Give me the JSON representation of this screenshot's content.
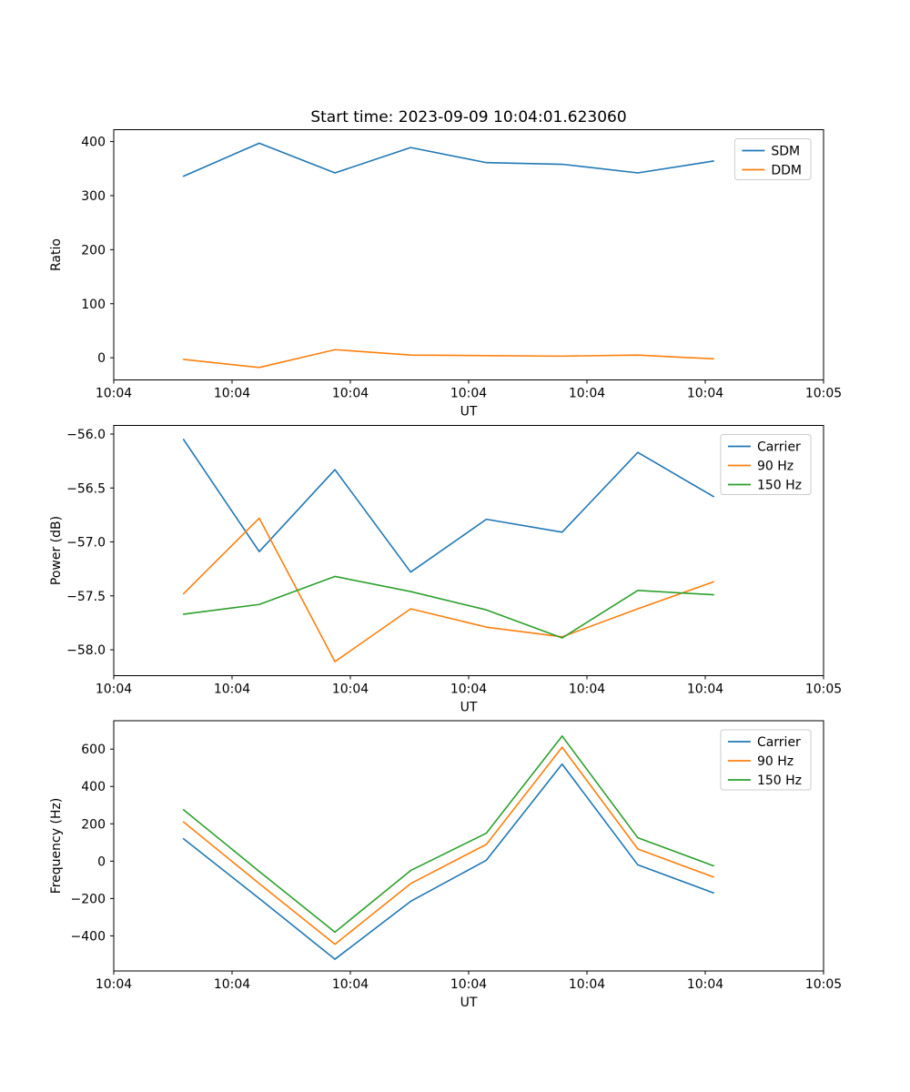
{
  "figure": {
    "title": "Start time: 2023-09-09 10:04:01.623060",
    "background": "#ffffff"
  },
  "colors": {
    "blue": "#1f77b4",
    "orange": "#ff7f0e",
    "green": "#2ca02c",
    "spine": "#000000",
    "legend_edge": "#cccccc"
  },
  "x_axis": {
    "label": "UT",
    "range": [
      0,
      60
    ],
    "tick_values": [
      0,
      10,
      20,
      30,
      40,
      50,
      60
    ],
    "tick_labels": [
      "10:04",
      "10:04",
      "10:04",
      "10:04",
      "10:04",
      "10:04",
      "10:05"
    ]
  },
  "sample_times_seconds": [
    5.9,
    12.3,
    18.7,
    25.1,
    31.5,
    37.9,
    44.3,
    50.7
  ],
  "chart_data": [
    {
      "id": "ratio",
      "type": "line",
      "title": "Start time: 2023-09-09 10:04:01.623060",
      "xlabel": "UT",
      "ylabel": "Ratio",
      "ylim": [
        -41,
        422
      ],
      "yticks": [
        0,
        100,
        200,
        300,
        400
      ],
      "ytick_labels": [
        "0",
        "100",
        "200",
        "300",
        "400"
      ],
      "x": [
        5.9,
        12.3,
        18.7,
        25.1,
        31.5,
        37.9,
        44.3,
        50.7
      ],
      "grid": false,
      "legend_position": "upper right",
      "series": [
        {
          "name": "SDM",
          "color": "#1f77b4",
          "values": [
            336,
            397,
            342,
            389,
            361,
            358,
            342,
            364
          ]
        },
        {
          "name": "DDM",
          "color": "#ff7f0e",
          "values": [
            -3,
            -18,
            15,
            5,
            4,
            3,
            5,
            -2
          ]
        }
      ]
    },
    {
      "id": "power",
      "type": "line",
      "xlabel": "UT",
      "ylabel": "Power (dB)",
      "ylim": [
        -58.24,
        -55.92
      ],
      "yticks": [
        -58.0,
        -57.5,
        -57.0,
        -56.5,
        -56.0
      ],
      "ytick_labels": [
        "−58.0",
        "−57.5",
        "−57.0",
        "−56.5",
        "−56.0"
      ],
      "x": [
        5.9,
        12.3,
        18.7,
        25.1,
        31.5,
        37.9,
        44.3,
        50.7
      ],
      "grid": false,
      "legend_position": "upper right",
      "series": [
        {
          "name": "Carrier",
          "color": "#1f77b4",
          "values": [
            -56.05,
            -57.09,
            -56.33,
            -57.28,
            -56.79,
            -56.91,
            -56.17,
            -56.58
          ]
        },
        {
          "name": "90 Hz",
          "color": "#ff7f0e",
          "values": [
            -57.48,
            -56.78,
            -58.11,
            -57.62,
            -57.79,
            -57.88,
            -57.62,
            -57.37
          ]
        },
        {
          "name": "150 Hz",
          "color": "#2ca02c",
          "values": [
            -57.67,
            -57.58,
            -57.32,
            -57.46,
            -57.63,
            -57.89,
            -57.45,
            -57.49
          ]
        }
      ]
    },
    {
      "id": "frequency",
      "type": "line",
      "xlabel": "UT",
      "ylabel": "Frequency (Hz)",
      "ylim": [
        -588,
        752
      ],
      "yticks": [
        -400,
        -200,
        0,
        200,
        400,
        600
      ],
      "ytick_labels": [
        "−400",
        "−200",
        "0",
        "200",
        "400",
        "600"
      ],
      "x": [
        5.9,
        12.3,
        18.7,
        25.1,
        31.5,
        37.9,
        44.3,
        50.7
      ],
      "grid": false,
      "legend_position": "upper right",
      "series": [
        {
          "name": "Carrier",
          "color": "#1f77b4",
          "values": [
            120,
            -200,
            -525,
            -215,
            5,
            520,
            -20,
            -170
          ]
        },
        {
          "name": "90 Hz",
          "color": "#ff7f0e",
          "values": [
            210,
            -120,
            -445,
            -120,
            90,
            610,
            65,
            -85
          ]
        },
        {
          "name": "150 Hz",
          "color": "#2ca02c",
          "values": [
            275,
            -55,
            -380,
            -50,
            150,
            670,
            125,
            -25
          ]
        }
      ]
    }
  ]
}
